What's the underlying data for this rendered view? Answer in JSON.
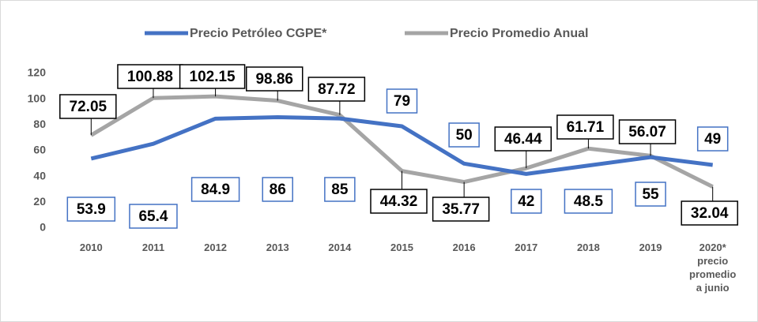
{
  "chart_data": {
    "type": "line",
    "categories": [
      "2010",
      "2011",
      "2012",
      "2013",
      "2014",
      "2015",
      "2016",
      "2017",
      "2018",
      "2019",
      "2020*\nprecio\npromedio\na junio"
    ],
    "series": [
      {
        "name": "Precio Petróleo CGPE*",
        "color": "#4472c4",
        "values": [
          53.9,
          65.4,
          84.9,
          86,
          85,
          79,
          50,
          42,
          48.5,
          55,
          49
        ]
      },
      {
        "name": "Precio Promedio Anual",
        "color": "#a5a5a5",
        "values": [
          72.05,
          100.88,
          102.15,
          98.86,
          87.72,
          44.32,
          35.77,
          46.44,
          61.71,
          56.07,
          32.04
        ]
      }
    ],
    "ylim": [
      0,
      120
    ],
    "yticks": [
      0,
      20,
      40,
      60,
      80,
      100,
      120
    ],
    "grid": false,
    "legend": "top"
  }
}
